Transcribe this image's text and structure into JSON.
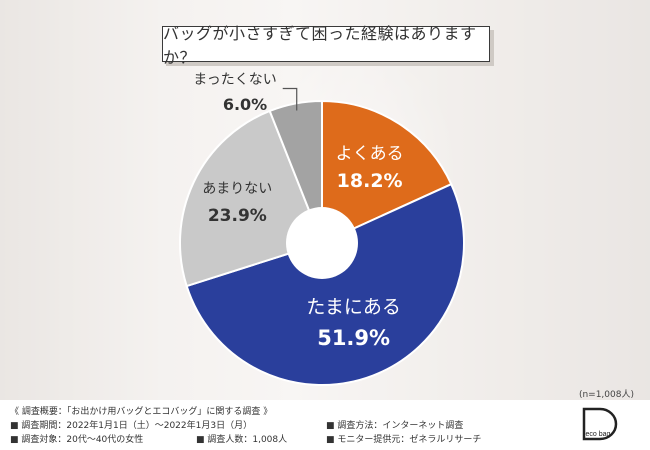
{
  "title": "バッグが小さすぎて困った経験はありますか？",
  "chart_data": {
    "type": "pie",
    "title": "バッグが小さすぎて困った経験はありますか？",
    "slices": [
      {
        "label": "よくある",
        "value": 18.2,
        "value_label": "18.2%",
        "color": "#de6b1b",
        "text_color": "#ffffff"
      },
      {
        "label": "たまにある",
        "value": 51.9,
        "value_label": "51.9%",
        "color": "#2a3f9c",
        "text_color": "#ffffff"
      },
      {
        "label": "あまりない",
        "value": 23.9,
        "value_label": "23.9%",
        "color": "#c9c9c9",
        "text_color": "#333333"
      },
      {
        "label": "まったくない",
        "value": 6.0,
        "value_label": "6.0%",
        "color": "#a3a3a3",
        "text_color": "#333333"
      }
    ]
  },
  "sample_size": "(n=1,008人)",
  "footer": {
    "heading": "《 調査概要：「お出かけ用バッグとエコバッグ」に関する調査 》",
    "period": "■ 調査期間：2022年1月1日（土）〜2022年1月3日（月）",
    "target": "■ 調査対象：20代〜40代の女性",
    "count": "■ 調査人数：1,008人",
    "method": "■ 調査方法：インターネット調査",
    "provider": "■ モニター提供元：ゼネラルリサーチ"
  },
  "logo_text": "eco bag"
}
